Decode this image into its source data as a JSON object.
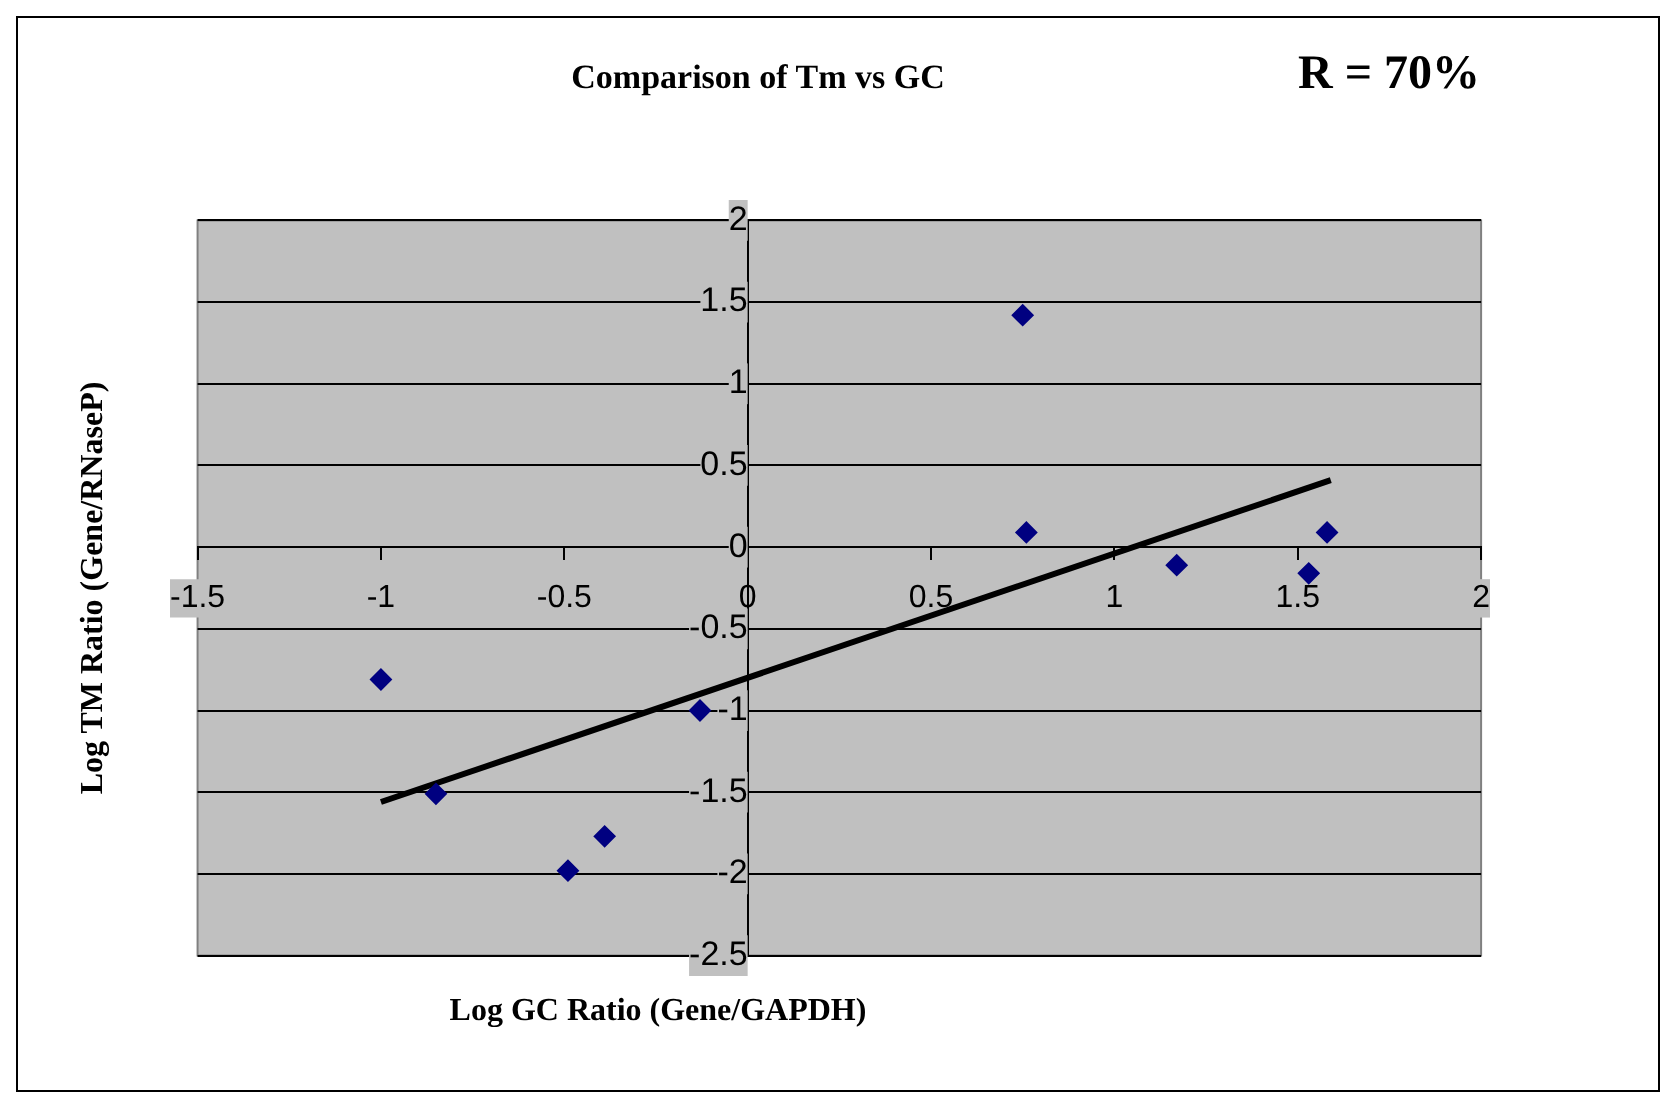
{
  "chart_data": {
    "type": "scatter",
    "title": "Comparison of Tm vs GC",
    "xlabel": "Log GC Ratio (Gene/GAPDH)",
    "ylabel": "Log TM Ratio (Gene/RNaseP)",
    "annotations": [
      "R = 70%"
    ],
    "xlim": [
      -1.5,
      2
    ],
    "xticks": [
      -1.5,
      -1,
      -0.5,
      0,
      0.5,
      1,
      1.5,
      2
    ],
    "ylim": [
      -2.5,
      2
    ],
    "yticks": [
      -2.5,
      -2,
      -1.5,
      -1,
      -0.5,
      0,
      0.5,
      1,
      1.5,
      2
    ],
    "grid": "y",
    "legend": false,
    "series": [
      {
        "type": "scatter",
        "marker": "diamond",
        "color": "#000080",
        "x": [
          -1.0,
          -0.85,
          -0.49,
          -0.39,
          -0.13,
          0.75,
          0.76,
          1.17,
          1.53,
          1.58
        ],
        "values": [
          -0.81,
          -1.51,
          -1.98,
          -1.77,
          -1.0,
          1.42,
          0.09,
          -0.11,
          -0.16,
          0.09
        ]
      },
      {
        "type": "line",
        "marker": "none",
        "color": "#000000",
        "x": [
          -1.0,
          1.59
        ],
        "values": [
          -1.56,
          0.41
        ]
      }
    ]
  }
}
